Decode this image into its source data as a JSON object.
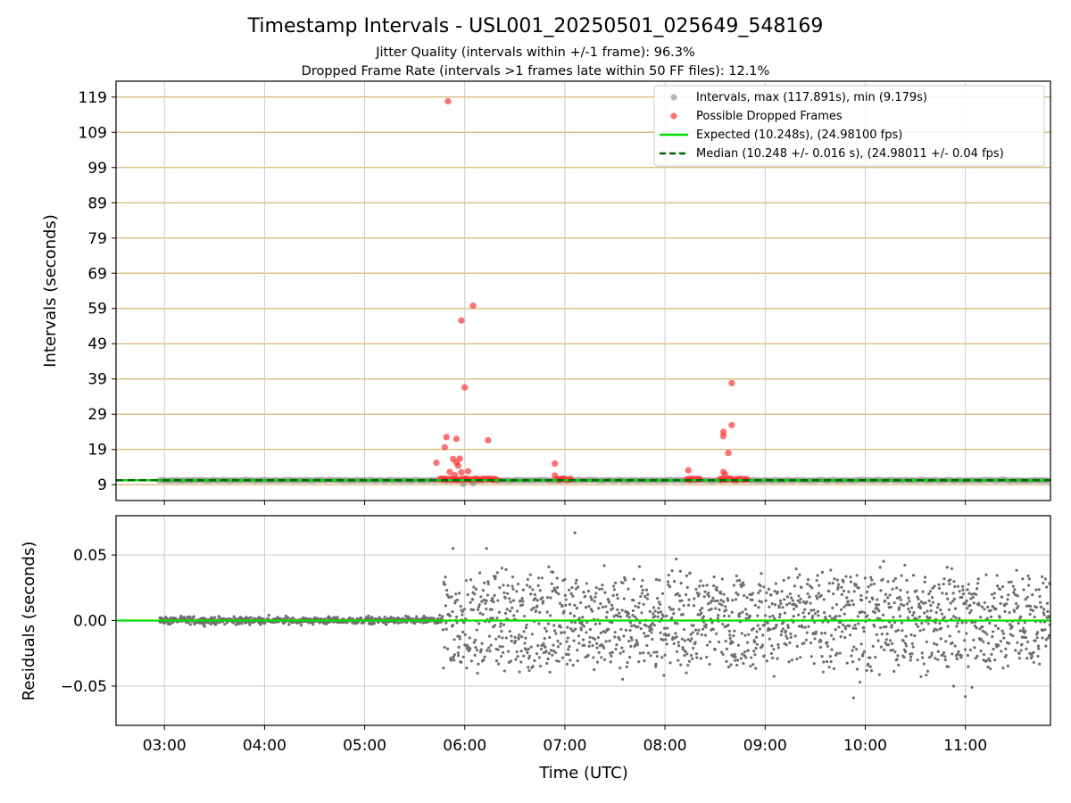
{
  "title": "Timestamp Intervals - USL001_20250501_025649_548169",
  "subtitle_1": "Jitter Quality (intervals within +/-1 frame): 96.3%",
  "subtitle_2": "Dropped Frame Rate (intervals >1 frames late within 50 FF files): 12.1%",
  "colors": {
    "grid_h_top": "#d2b871",
    "grid_v": "#cccccc",
    "interval_points": "#808080",
    "dropped": "#ff3333",
    "expected": "#00dd00",
    "median": "#006400",
    "residual_points": "#6e6e6e"
  },
  "chart_data": [
    {
      "type": "scatter",
      "ylabel": "Intervals (seconds)",
      "xlabel": "",
      "xlim": [
        "02:31",
        "11:51"
      ],
      "ylim": [
        4.5,
        123.5
      ],
      "yticks": [
        9,
        19,
        29,
        39,
        49,
        59,
        69,
        79,
        89,
        99,
        109,
        119
      ],
      "ytick_labels": [
        "9",
        "19",
        "29",
        "39",
        "49",
        "59",
        "69",
        "79",
        "89",
        "99",
        "109",
        "119"
      ],
      "grid": "horizontal",
      "legend_position": "top-right",
      "legend": [
        {
          "key": "intervals",
          "label": "Intervals, max (117.891s), min (9.179s)",
          "marker": "dot"
        },
        {
          "key": "dropped",
          "label": "Possible Dropped Frames",
          "marker": "dot"
        },
        {
          "key": "expected",
          "label": "Expected (10.248s), (24.98100 fps)",
          "marker": "line"
        },
        {
          "key": "median",
          "label": "Median (10.248 +/- 0.016 s), (24.98011 +/- 0.04 fps)",
          "marker": "dashed"
        }
      ],
      "series": [
        {
          "name": "Intervals, max (117.891s), min (9.179s)",
          "x_range": [
            "02:57",
            "11:51"
          ],
          "y_typical": 10.248,
          "min_points": [
            {
              "x": "05:59",
              "y": 9.18
            },
            {
              "x": "06:05",
              "y": 9.4
            }
          ]
        },
        {
          "name": "Possible Dropped Frames",
          "clusters": [
            {
              "x_range": [
                "05:45",
                "06:20"
              ],
              "y": 10.5
            },
            {
              "x_range": [
                "06:55",
                "07:04"
              ],
              "y": 10.5
            },
            {
              "x_range": [
                "08:13",
                "08:21"
              ],
              "y": 10.5
            },
            {
              "x_range": [
                "08:33",
                "08:50"
              ],
              "y": 10.5
            }
          ],
          "points": [
            {
              "x": "05:50",
              "y": 117.8
            },
            {
              "x": "06:05",
              "y": 59.8
            },
            {
              "x": "05:58",
              "y": 55.6
            },
            {
              "x": "06:00",
              "y": 36.6
            },
            {
              "x": "05:49",
              "y": 22.5
            },
            {
              "x": "05:55",
              "y": 22.0
            },
            {
              "x": "06:14",
              "y": 21.6
            },
            {
              "x": "05:48",
              "y": 19.6
            },
            {
              "x": "05:53",
              "y": 16.3
            },
            {
              "x": "05:57",
              "y": 16.4
            },
            {
              "x": "05:55",
              "y": 15.3
            },
            {
              "x": "05:43",
              "y": 15.2
            },
            {
              "x": "05:56",
              "y": 14.4
            },
            {
              "x": "05:51",
              "y": 12.6
            },
            {
              "x": "05:58",
              "y": 12.5
            },
            {
              "x": "06:02",
              "y": 12.8
            },
            {
              "x": "05:54",
              "y": 11.7
            },
            {
              "x": "06:54",
              "y": 15.0
            },
            {
              "x": "06:54",
              "y": 11.6
            },
            {
              "x": "08:14",
              "y": 13.1
            },
            {
              "x": "08:40",
              "y": 37.8
            },
            {
              "x": "08:40",
              "y": 25.9
            },
            {
              "x": "08:35",
              "y": 24.0
            },
            {
              "x": "08:35",
              "y": 22.8
            },
            {
              "x": "08:38",
              "y": 18.0
            },
            {
              "x": "08:35",
              "y": 12.6
            },
            {
              "x": "08:36",
              "y": 11.9
            }
          ]
        },
        {
          "name": "Expected (10.248s), (24.98100 fps)",
          "y": 10.248
        },
        {
          "name": "Median (10.248 +/- 0.016 s), (24.98011 +/- 0.04 fps)",
          "y": 10.248
        }
      ]
    },
    {
      "type": "scatter",
      "ylabel": "Residuals (seconds)",
      "xlabel": "Time (UTC)",
      "xlim": [
        "02:31",
        "11:51"
      ],
      "ylim": [
        -0.08,
        0.08
      ],
      "yticks": [
        -0.05,
        0.0,
        0.05
      ],
      "ytick_labels": [
        "−0.05",
        "0.00",
        "0.05"
      ],
      "xticks": [
        "03:00",
        "04:00",
        "05:00",
        "06:00",
        "07:00",
        "08:00",
        "09:00",
        "10:00",
        "11:00"
      ],
      "grid": "both",
      "series": [
        {
          "name": "residuals",
          "segments": [
            {
              "x_range": [
                "02:57",
                "05:47"
              ],
              "spread": 0.002
            },
            {
              "x_range": [
                "05:47",
                "11:51"
              ],
              "spread": 0.02
            },
            {
              "points": [
                {
                  "x": "07:06",
                  "y": 0.067
                },
                {
                  "x": "05:53",
                  "y": 0.055
                },
                {
                  "x": "06:13",
                  "y": 0.055
                },
                {
                  "x": "09:53",
                  "y": -0.059
                },
                {
                  "x": "11:00",
                  "y": -0.058
                },
                {
                  "x": "10:53",
                  "y": -0.05
                },
                {
                  "x": "11:04",
                  "y": -0.051
                }
              ]
            }
          ]
        },
        {
          "name": "median",
          "y": 0.0
        }
      ]
    }
  ]
}
